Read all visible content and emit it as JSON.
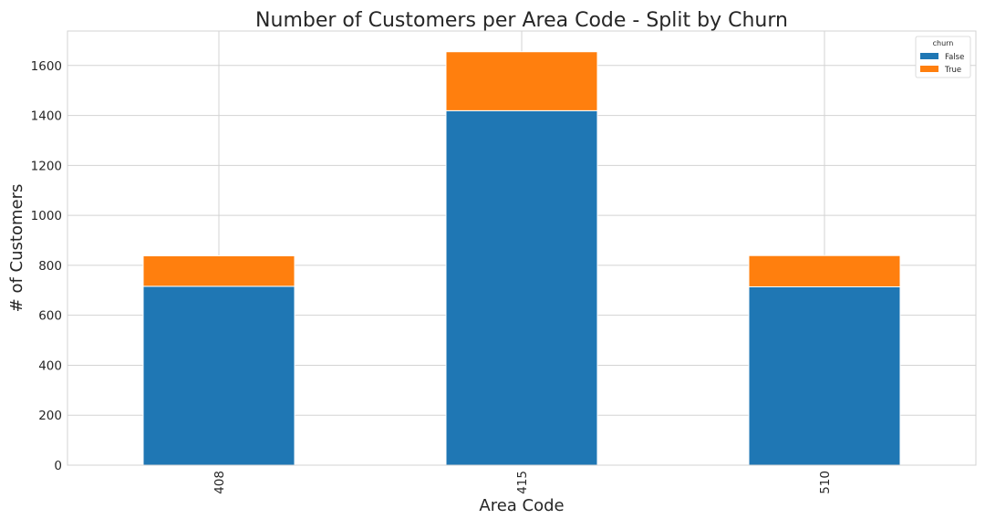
{
  "chart_data": {
    "type": "bar",
    "stacked": true,
    "title": "Number of Customers per Area Code - Split by Churn",
    "xlabel": "Area Code",
    "ylabel": "# of Customers",
    "categories": [
      "408",
      "415",
      "510"
    ],
    "series": [
      {
        "name": "False",
        "values": [
          716,
          1419,
          714
        ],
        "color": "#1f77b4"
      },
      {
        "name": "True",
        "values": [
          122,
          236,
          125
        ],
        "color": "#ff7f0e"
      }
    ],
    "ylim": [
      0,
      1738
    ],
    "yticks": [
      0,
      200,
      400,
      600,
      800,
      1000,
      1200,
      1400,
      1600
    ],
    "grid": true,
    "legend": {
      "title": "churn",
      "placement": "top-right"
    }
  }
}
